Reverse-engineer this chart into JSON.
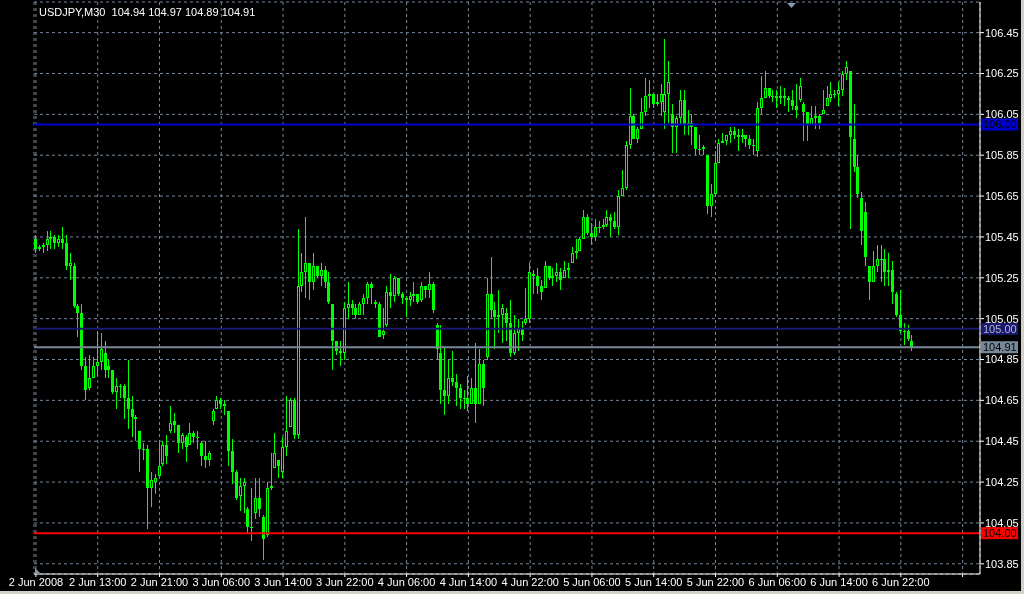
{
  "chart_data": {
    "type": "candlestick",
    "title": "USDJPY,M30  104.94 104.97 104.89 104.91",
    "color": "#00ff00",
    "categories": [
      "2 Jun 2008",
      null,
      null,
      null,
      null,
      null,
      null,
      null,
      null,
      null,
      null,
      null,
      null,
      null,
      null,
      null,
      "2 Jun 13:00",
      null,
      null,
      null,
      null,
      null,
      null,
      null,
      null,
      null,
      null,
      null,
      null,
      null,
      null,
      null,
      "2 Jun 21:00",
      null,
      null,
      null,
      null,
      null,
      null,
      null,
      null,
      null,
      null,
      null,
      null,
      null,
      null,
      null,
      "3 Jun 06:00",
      null,
      null,
      null,
      null,
      null,
      null,
      null,
      null,
      null,
      null,
      null,
      null,
      null,
      null,
      null,
      "3 Jun 14:00",
      null,
      null,
      null,
      null,
      null,
      null,
      null,
      null,
      null,
      null,
      null,
      null,
      null,
      null,
      null,
      "3 Jun 22:00",
      null,
      null,
      null,
      null,
      null,
      null,
      null,
      null,
      null,
      null,
      null,
      null,
      null,
      null,
      null,
      "4 Jun 06:00",
      null,
      null,
      null,
      null,
      null,
      null,
      null,
      null,
      null,
      null,
      null,
      null,
      null,
      null,
      null,
      "4 Jun 14:00",
      null,
      null,
      null,
      null,
      null,
      null,
      null,
      null,
      null,
      null,
      null,
      null,
      null,
      null,
      null,
      "4 Jun 22:00",
      null,
      null,
      null,
      null,
      null,
      null,
      null,
      null,
      null,
      null,
      null,
      null,
      null,
      null,
      null,
      "5 Jun 06:00",
      null,
      null,
      null,
      null,
      null,
      null,
      null,
      null,
      null,
      null,
      null,
      null,
      null,
      null,
      null,
      "5 Jun 14:00",
      null,
      null,
      null,
      null,
      null,
      null,
      null,
      null,
      null,
      null,
      null,
      null,
      null,
      null,
      null,
      "5 Jun 22:00",
      null,
      null,
      null,
      null,
      null,
      null,
      null,
      null,
      null,
      null,
      null,
      null,
      null,
      null,
      null,
      "6 Jun 06:00",
      null,
      null,
      null,
      null,
      null,
      null,
      null,
      null,
      null,
      null,
      null,
      null,
      null,
      null,
      null,
      "6 Jun 14:00",
      null,
      null,
      null,
      null,
      null,
      null,
      null,
      null,
      null,
      null,
      null,
      null,
      null,
      null,
      null,
      "6 Jun 22:00",
      null,
      null,
      null,
      null,
      null,
      null,
      null,
      null,
      null,
      null,
      null,
      null,
      null,
      null,
      null,
      null,
      null,
      null,
      null,
      null
    ],
    "ohlc": [
      [
        105.44,
        105.46,
        105.37,
        105.39
      ],
      [
        105.39,
        105.41,
        105.38,
        105.4
      ],
      [
        105.4,
        105.42,
        105.37,
        105.41
      ],
      [
        105.41,
        105.48,
        105.38,
        105.44
      ],
      [
        105.44,
        105.48,
        105.39,
        105.45
      ],
      [
        105.45,
        105.46,
        105.39,
        105.42
      ],
      [
        105.42,
        105.46,
        105.4,
        105.44
      ],
      [
        105.44,
        105.5,
        105.39,
        105.42
      ],
      [
        105.42,
        105.46,
        105.29,
        105.31
      ],
      [
        105.31,
        105.37,
        105.24,
        105.32
      ],
      [
        105.31,
        105.32,
        105.1,
        105.11
      ],
      [
        105.11,
        105.12,
        104.96,
        105.08
      ],
      [
        105.08,
        105.12,
        104.8,
        104.82
      ],
      [
        104.82,
        104.86,
        104.65,
        104.7
      ],
      [
        104.71,
        104.87,
        104.7,
        104.76
      ],
      [
        104.76,
        104.86,
        104.76,
        104.82
      ],
      [
        104.82,
        104.99,
        104.77,
        104.84
      ],
      [
        104.84,
        104.98,
        104.8,
        104.9
      ],
      [
        104.88,
        104.94,
        104.76,
        104.8
      ],
      [
        104.82,
        104.85,
        104.76,
        104.8
      ],
      [
        104.8,
        104.8,
        104.68,
        104.69
      ],
      [
        104.69,
        104.76,
        104.61,
        104.72
      ],
      [
        104.72,
        104.73,
        104.66,
        104.72
      ],
      [
        104.72,
        104.73,
        104.56,
        104.66
      ],
      [
        104.66,
        104.85,
        104.51,
        104.61
      ],
      [
        104.61,
        104.67,
        104.47,
        104.57
      ],
      [
        104.57,
        104.58,
        104.45,
        104.56
      ],
      [
        104.5,
        104.5,
        104.3,
        104.41
      ],
      [
        104.41,
        104.44,
        104.36,
        104.41
      ],
      [
        104.41,
        104.43,
        104.02,
        104.22
      ],
      [
        104.22,
        104.3,
        104.13,
        104.26
      ],
      [
        104.25,
        104.29,
        104.19,
        104.27
      ],
      [
        104.28,
        104.44,
        104.27,
        104.33
      ],
      [
        104.34,
        104.45,
        104.33,
        104.43
      ],
      [
        104.43,
        104.48,
        104.34,
        104.38
      ],
      [
        104.5,
        104.62,
        104.49,
        104.54
      ],
      [
        104.55,
        104.59,
        104.49,
        104.53
      ],
      [
        104.53,
        104.53,
        104.39,
        104.44
      ],
      [
        104.44,
        104.49,
        104.41,
        104.48
      ],
      [
        104.47,
        104.48,
        104.35,
        104.42
      ],
      [
        104.43,
        104.54,
        104.43,
        104.49
      ],
      [
        104.49,
        104.5,
        104.44,
        104.47
      ],
      [
        104.47,
        104.5,
        104.41,
        104.47
      ],
      [
        104.44,
        104.45,
        104.33,
        104.38
      ],
      [
        104.38,
        104.45,
        104.32,
        104.36
      ],
      [
        104.36,
        104.4,
        104.33,
        104.39
      ],
      [
        104.55,
        104.61,
        104.53,
        104.6
      ],
      [
        104.61,
        104.67,
        104.61,
        104.65
      ],
      [
        104.65,
        104.66,
        104.61,
        104.63
      ],
      [
        104.63,
        104.65,
        104.58,
        104.62
      ],
      [
        104.6,
        104.6,
        104.33,
        104.4
      ],
      [
        104.4,
        104.46,
        104.24,
        104.3
      ],
      [
        104.3,
        104.31,
        104.16,
        104.17
      ],
      [
        104.18,
        104.27,
        104.11,
        104.23
      ],
      [
        104.23,
        104.27,
        104.1,
        104.25
      ],
      [
        104.12,
        104.13,
        104.0,
        104.03
      ],
      [
        104.03,
        104.22,
        103.96,
        104.03
      ],
      [
        104.1,
        104.27,
        104.07,
        104.17
      ],
      [
        104.17,
        104.27,
        104.08,
        104.12
      ],
      [
        104.08,
        104.09,
        103.87,
        103.97
      ],
      [
        103.99,
        104.25,
        103.98,
        104.22
      ],
      [
        104.22,
        104.39,
        104.21,
        104.23
      ],
      [
        104.32,
        104.49,
        104.32,
        104.39
      ],
      [
        104.36,
        104.36,
        104.27,
        104.33
      ],
      [
        104.3,
        104.47,
        104.27,
        104.42
      ],
      [
        104.42,
        104.67,
        104.38,
        104.5
      ],
      [
        104.52,
        104.66,
        104.52,
        104.65
      ],
      [
        104.65,
        104.66,
        104.46,
        104.48
      ],
      [
        104.48,
        105.49,
        104.46,
        105.21
      ],
      [
        105.21,
        105.37,
        105.18,
        105.28
      ],
      [
        105.28,
        105.55,
        105.15,
        105.32
      ],
      [
        105.32,
        105.32,
        105.14,
        105.23
      ],
      [
        105.23,
        105.37,
        105.19,
        105.31
      ],
      [
        105.31,
        105.31,
        105.25,
        105.26
      ],
      [
        105.26,
        105.32,
        105.21,
        105.29
      ],
      [
        105.29,
        105.31,
        105.2,
        105.23
      ],
      [
        105.23,
        105.28,
        105.12,
        105.13
      ],
      [
        105.12,
        105.12,
        104.8,
        104.94
      ],
      [
        104.94,
        104.94,
        104.87,
        104.89
      ],
      [
        104.89,
        104.94,
        104.82,
        104.88
      ],
      [
        104.88,
        105.13,
        104.85,
        105.1
      ],
      [
        105.1,
        105.23,
        105.05,
        105.12
      ],
      [
        105.12,
        105.14,
        105.07,
        105.1
      ],
      [
        105.1,
        105.12,
        105.05,
        105.07
      ],
      [
        105.07,
        105.13,
        105.07,
        105.12
      ],
      [
        105.12,
        105.17,
        105.07,
        105.15
      ],
      [
        105.15,
        105.23,
        105.12,
        105.22
      ],
      [
        105.22,
        105.23,
        105.12,
        105.2
      ],
      [
        105.13,
        105.14,
        105.1,
        105.12
      ],
      [
        105.12,
        105.13,
        104.96,
        104.96
      ],
      [
        104.97,
        105.1,
        104.95,
        104.99
      ],
      [
        105.02,
        105.21,
        105.01,
        105.18
      ],
      [
        105.18,
        105.27,
        105.1,
        105.16
      ],
      [
        105.16,
        105.26,
        105.13,
        105.25
      ],
      [
        105.25,
        105.25,
        105.16,
        105.17
      ],
      [
        105.17,
        105.18,
        105.12,
        105.15
      ],
      [
        105.15,
        105.16,
        105.06,
        105.14
      ],
      [
        105.14,
        105.18,
        105.11,
        105.16
      ],
      [
        105.16,
        105.23,
        105.13,
        105.17
      ],
      [
        105.17,
        105.17,
        105.12,
        105.13
      ],
      [
        105.14,
        105.23,
        105.13,
        105.21
      ],
      [
        105.21,
        105.21,
        105.15,
        105.19
      ],
      [
        105.19,
        105.28,
        105.15,
        105.22
      ],
      [
        105.22,
        105.23,
        105.08,
        105.09
      ],
      [
        105.02,
        105.03,
        104.85,
        104.9
      ],
      [
        104.88,
        105.02,
        104.63,
        104.7
      ],
      [
        104.7,
        104.91,
        104.58,
        104.67
      ],
      [
        104.67,
        104.85,
        104.63,
        104.76
      ],
      [
        104.76,
        104.89,
        104.72,
        104.74
      ],
      [
        104.74,
        104.78,
        104.62,
        104.71
      ],
      [
        104.71,
        104.73,
        104.61,
        104.66
      ],
      [
        104.66,
        104.7,
        104.61,
        104.66
      ],
      [
        104.66,
        104.77,
        104.6,
        104.63
      ],
      [
        104.63,
        104.76,
        104.63,
        104.71
      ],
      [
        104.71,
        104.93,
        104.54,
        104.63
      ],
      [
        104.63,
        104.9,
        104.63,
        104.83
      ],
      [
        104.83,
        104.85,
        104.62,
        104.71
      ],
      [
        104.86,
        105.25,
        104.85,
        105.17
      ],
      [
        105.17,
        105.35,
        105.05,
        105.09
      ],
      [
        105.09,
        105.13,
        104.9,
        105.06
      ],
      [
        105.06,
        105.19,
        104.98,
        105.07
      ],
      [
        105.07,
        105.12,
        104.93,
        105.1
      ],
      [
        105.08,
        105.1,
        104.94,
        105.03
      ],
      [
        105.03,
        105.14,
        104.86,
        104.88
      ],
      [
        104.88,
        105.07,
        104.87,
        104.98
      ],
      [
        104.98,
        105.05,
        104.89,
        105.0
      ],
      [
        105.0,
        105.04,
        104.94,
        104.97
      ],
      [
        105.03,
        105.2,
        105.02,
        105.05
      ],
      [
        105.05,
        105.32,
        105.03,
        105.28
      ],
      [
        105.27,
        105.29,
        105.17,
        105.26
      ],
      [
        105.26,
        105.3,
        105.17,
        105.21
      ],
      [
        105.21,
        105.24,
        105.14,
        105.18
      ],
      [
        105.2,
        105.33,
        105.2,
        105.31
      ],
      [
        105.31,
        105.31,
        105.24,
        105.25
      ],
      [
        105.25,
        105.3,
        105.21,
        105.26
      ],
      [
        105.26,
        105.32,
        105.23,
        105.28
      ],
      [
        105.28,
        105.3,
        105.19,
        105.24
      ],
      [
        105.25,
        105.33,
        105.25,
        105.29
      ],
      [
        105.29,
        105.32,
        105.25,
        105.3
      ],
      [
        105.32,
        105.4,
        105.32,
        105.37
      ],
      [
        105.37,
        105.44,
        105.34,
        105.38
      ],
      [
        105.38,
        105.45,
        105.38,
        105.44
      ],
      [
        105.44,
        105.58,
        105.44,
        105.55
      ],
      [
        105.55,
        105.56,
        105.46,
        105.47
      ],
      [
        105.47,
        105.52,
        105.41,
        105.45
      ],
      [
        105.45,
        105.54,
        105.43,
        105.5
      ],
      [
        105.5,
        105.53,
        105.47,
        105.5
      ],
      [
        105.5,
        105.54,
        105.49,
        105.51
      ],
      [
        105.51,
        105.58,
        105.5,
        105.55
      ],
      [
        105.55,
        105.56,
        105.45,
        105.53
      ],
      [
        105.53,
        105.57,
        105.49,
        105.5
      ],
      [
        105.5,
        105.68,
        105.46,
        105.65
      ],
      [
        105.65,
        105.78,
        105.65,
        105.69
      ],
      [
        105.69,
        105.92,
        105.68,
        105.9
      ],
      [
        105.9,
        106.18,
        105.88,
        106.04
      ],
      [
        106.04,
        106.05,
        105.93,
        105.93
      ],
      [
        105.93,
        105.99,
        105.91,
        105.98
      ],
      [
        105.98,
        106.13,
        105.98,
        106.06
      ],
      [
        106.06,
        106.23,
        106.04,
        106.14
      ],
      [
        106.14,
        106.22,
        106.08,
        106.15
      ],
      [
        106.15,
        106.15,
        106.08,
        106.1
      ],
      [
        106.1,
        106.15,
        106.09,
        106.11
      ],
      [
        106.11,
        106.2,
        106.04,
        106.15
      ],
      [
        106.06,
        106.42,
        105.98,
        106.15
      ],
      [
        106.15,
        106.31,
        106.01,
        106.21
      ],
      [
        106.05,
        106.1,
        105.86,
        105.99
      ],
      [
        105.99,
        106.04,
        105.86,
        106.03
      ],
      [
        106.03,
        106.17,
        106.0,
        106.12
      ],
      [
        106.12,
        106.17,
        105.95,
        106.0
      ],
      [
        106.0,
        106.07,
        105.95,
        106.01
      ],
      [
        106.01,
        106.05,
        105.9,
        105.99
      ],
      [
        105.99,
        105.99,
        105.85,
        105.88
      ],
      [
        105.88,
        105.95,
        105.85,
        105.88
      ],
      [
        105.88,
        105.9,
        105.85,
        105.89
      ],
      [
        105.85,
        105.85,
        105.56,
        105.6
      ],
      [
        105.6,
        105.71,
        105.55,
        105.66
      ],
      [
        105.66,
        105.87,
        105.65,
        105.81
      ],
      [
        105.81,
        105.93,
        105.81,
        105.91
      ],
      [
        105.91,
        105.96,
        105.91,
        105.92
      ],
      [
        105.92,
        105.95,
        105.9,
        105.95
      ],
      [
        105.95,
        105.99,
        105.91,
        105.97
      ],
      [
        105.97,
        105.99,
        105.93,
        105.95
      ],
      [
        105.95,
        105.98,
        105.87,
        105.94
      ],
      [
        105.94,
        105.98,
        105.91,
        105.95
      ],
      [
        105.95,
        105.95,
        105.89,
        105.93
      ],
      [
        105.93,
        105.95,
        105.88,
        105.9
      ],
      [
        105.9,
        105.93,
        105.85,
        105.9
      ],
      [
        105.87,
        106.11,
        105.84,
        106.08
      ],
      [
        106.08,
        106.24,
        106.05,
        106.13
      ],
      [
        106.13,
        106.26,
        106.13,
        106.18
      ],
      [
        106.18,
        106.18,
        106.13,
        106.14
      ],
      [
        106.14,
        106.17,
        106.11,
        106.14
      ],
      [
        106.14,
        106.17,
        106.08,
        106.13
      ],
      [
        106.13,
        106.19,
        106.1,
        106.14
      ],
      [
        106.14,
        106.18,
        106.09,
        106.13
      ],
      [
        106.13,
        106.14,
        106.06,
        106.12
      ],
      [
        106.12,
        106.17,
        106.07,
        106.09
      ],
      [
        106.09,
        106.2,
        106.03,
        106.07
      ],
      [
        106.12,
        106.23,
        106.11,
        106.19
      ],
      [
        106.1,
        106.11,
        105.92,
        106.06
      ],
      [
        106.06,
        106.06,
        105.92,
        106.0
      ],
      [
        106.0,
        106.09,
        106.0,
        106.03
      ],
      [
        106.03,
        106.09,
        105.98,
        106.04
      ],
      [
        106.04,
        106.05,
        105.98,
        106.01
      ],
      [
        106.05,
        106.17,
        106.05,
        106.07
      ],
      [
        106.09,
        106.19,
        106.09,
        106.13
      ],
      [
        106.13,
        106.21,
        106.11,
        106.15
      ],
      [
        106.15,
        106.17,
        106.13,
        106.15
      ],
      [
        106.15,
        106.21,
        106.09,
        106.17
      ],
      [
        106.17,
        106.26,
        106.14,
        106.25
      ],
      [
        106.25,
        106.31,
        106.22,
        106.28
      ],
      [
        106.26,
        106.26,
        105.49,
        105.94
      ],
      [
        105.93,
        106.1,
        105.77,
        105.79
      ],
      [
        105.79,
        105.85,
        105.64,
        105.66
      ],
      [
        105.64,
        105.67,
        105.41,
        105.48
      ],
      [
        105.57,
        105.62,
        105.31,
        105.35
      ],
      [
        105.31,
        105.31,
        105.14,
        105.23
      ],
      [
        105.23,
        105.38,
        105.23,
        105.31
      ],
      [
        105.31,
        105.41,
        105.28,
        105.34
      ],
      [
        105.34,
        105.41,
        105.23,
        105.34
      ],
      [
        105.34,
        105.39,
        105.21,
        105.28
      ],
      [
        105.28,
        105.37,
        105.21,
        105.29
      ],
      [
        105.29,
        105.33,
        105.12,
        105.18
      ],
      [
        105.17,
        105.18,
        105.06,
        105.07
      ],
      [
        105.07,
        105.19,
        104.98,
        104.99
      ],
      [
        104.99,
        105.03,
        104.92,
        104.99
      ],
      [
        104.99,
        105.02,
        104.94,
        104.95
      ],
      [
        104.94,
        104.97,
        104.89,
        104.91
      ],
      null,
      null,
      null,
      null,
      null,
      null,
      null,
      null,
      null,
      null,
      null,
      null,
      null,
      null,
      null,
      null,
      null
    ],
    "ylim": [
      103.8,
      106.6
    ],
    "yticks": [
      103.85,
      104.05,
      104.25,
      104.45,
      104.65,
      104.85,
      105.05,
      105.25,
      105.45,
      105.65,
      105.85,
      106.05,
      106.25,
      106.45
    ],
    "grid": true,
    "ref_lines": [
      {
        "axis": "y",
        "value": 106,
        "label": "106.00",
        "color": "#0000cd"
      },
      {
        "axis": "y",
        "value": 105,
        "label": "105.00",
        "color": "#191970"
      },
      {
        "axis": "y",
        "value": 104.91,
        "label": "104.91",
        "color": "#778899"
      },
      {
        "axis": "y",
        "value": 104,
        "label": "104.00",
        "color": "#ff0000"
      }
    ]
  }
}
